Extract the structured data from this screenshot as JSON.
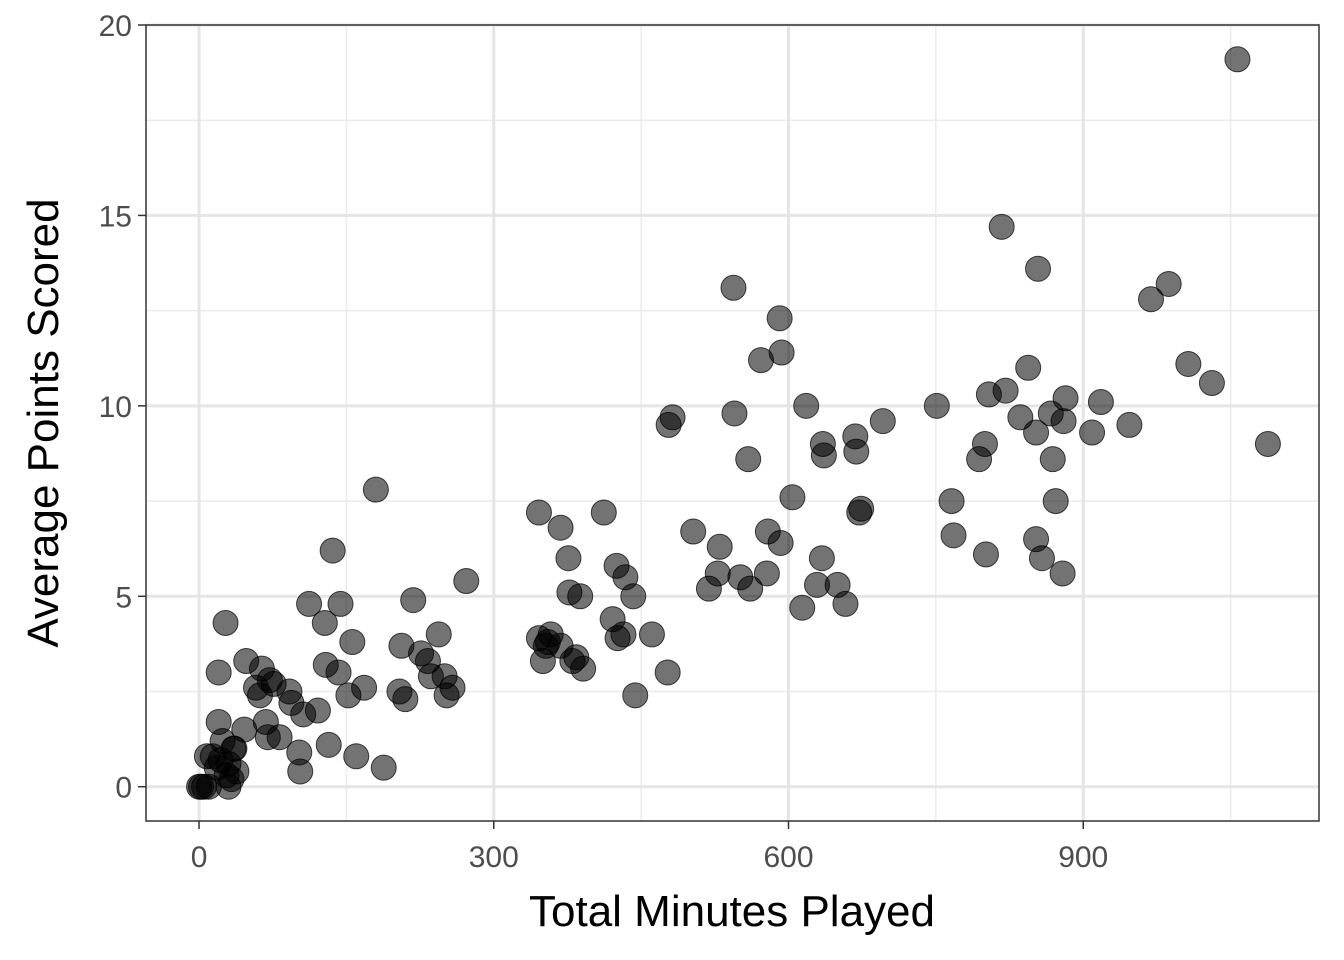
{
  "chart_data": {
    "type": "scatter",
    "title": "",
    "xlabel": "Total Minutes Played",
    "ylabel": "Average Points Scored",
    "xlim": [
      -54,
      1140
    ],
    "ylim": [
      -0.9,
      20
    ],
    "x_ticks": [
      0,
      300,
      600,
      900
    ],
    "x_tick_labels": [
      "0",
      "300",
      "600",
      "900"
    ],
    "y_ticks": [
      0,
      5,
      10,
      15,
      20
    ],
    "y_tick_labels": [
      "0",
      "5",
      "10",
      "15",
      "20"
    ],
    "x_minor": [
      150,
      450,
      750,
      1050
    ],
    "y_minor": [
      2.5,
      7.5,
      12.5,
      17.5
    ],
    "grid": true,
    "point_color": "#000000",
    "point_alpha": 0.55,
    "points": [
      [
        0,
        0
      ],
      [
        2,
        0
      ],
      [
        5,
        0
      ],
      [
        8,
        0.8
      ],
      [
        10,
        0
      ],
      [
        14,
        0.8
      ],
      [
        18,
        0.5
      ],
      [
        20,
        1.7
      ],
      [
        20,
        3.0
      ],
      [
        22,
        0.7
      ],
      [
        24,
        1.2
      ],
      [
        27,
        4.3
      ],
      [
        28,
        0.3
      ],
      [
        30,
        0.6
      ],
      [
        30,
        0.0
      ],
      [
        33,
        0.2
      ],
      [
        35,
        1.0
      ],
      [
        36,
        1.0
      ],
      [
        38,
        0.4
      ],
      [
        46,
        1.5
      ],
      [
        48,
        3.3
      ],
      [
        58,
        2.6
      ],
      [
        62,
        2.4
      ],
      [
        64,
        3.1
      ],
      [
        68,
        1.7
      ],
      [
        70,
        1.3
      ],
      [
        72,
        2.8
      ],
      [
        76,
        2.7
      ],
      [
        82,
        1.3
      ],
      [
        92,
        2.5
      ],
      [
        94,
        2.2
      ],
      [
        102,
        0.9
      ],
      [
        103,
        0.4
      ],
      [
        106,
        1.9
      ],
      [
        112,
        4.8
      ],
      [
        121,
        2.0
      ],
      [
        128,
        4.3
      ],
      [
        129,
        3.2
      ],
      [
        132,
        1.1
      ],
      [
        136,
        6.2
      ],
      [
        142,
        3.0
      ],
      [
        144,
        4.8
      ],
      [
        152,
        2.4
      ],
      [
        156,
        3.8
      ],
      [
        160,
        0.8
      ],
      [
        168,
        2.6
      ],
      [
        180,
        7.8
      ],
      [
        188,
        0.5
      ],
      [
        204,
        2.5
      ],
      [
        206,
        3.7
      ],
      [
        210,
        2.3
      ],
      [
        218,
        4.9
      ],
      [
        226,
        3.5
      ],
      [
        233,
        3.3
      ],
      [
        236,
        2.9
      ],
      [
        244,
        4.0
      ],
      [
        250,
        2.9
      ],
      [
        252,
        2.4
      ],
      [
        258,
        2.6
      ],
      [
        272,
        5.4
      ],
      [
        346,
        3.9
      ],
      [
        346,
        7.2
      ],
      [
        350,
        3.3
      ],
      [
        353,
        3.7
      ],
      [
        355,
        3.8
      ],
      [
        358,
        4.0
      ],
      [
        368,
        6.8
      ],
      [
        368,
        3.7
      ],
      [
        376,
        6.0
      ],
      [
        377,
        5.1
      ],
      [
        380,
        3.3
      ],
      [
        384,
        3.4
      ],
      [
        388,
        5.0
      ],
      [
        391,
        3.1
      ],
      [
        412,
        7.2
      ],
      [
        421,
        4.4
      ],
      [
        425,
        5.8
      ],
      [
        426,
        3.9
      ],
      [
        432,
        4.0
      ],
      [
        434,
        5.5
      ],
      [
        442,
        5.0
      ],
      [
        444,
        2.4
      ],
      [
        461,
        4.0
      ],
      [
        477,
        3.0
      ],
      [
        478,
        9.5
      ],
      [
        482,
        9.7
      ],
      [
        503,
        6.7
      ],
      [
        519,
        5.2
      ],
      [
        528,
        5.6
      ],
      [
        530,
        6.3
      ],
      [
        544,
        13.1
      ],
      [
        545,
        9.8
      ],
      [
        551,
        5.5
      ],
      [
        559,
        8.6
      ],
      [
        561,
        5.2
      ],
      [
        572,
        11.2
      ],
      [
        578,
        5.6
      ],
      [
        579,
        6.7
      ],
      [
        591,
        12.3
      ],
      [
        592,
        6.4
      ],
      [
        593,
        11.4
      ],
      [
        604,
        7.6
      ],
      [
        614,
        4.7
      ],
      [
        618,
        10.0
      ],
      [
        629,
        5.3
      ],
      [
        634,
        6.0
      ],
      [
        635,
        9.0
      ],
      [
        636,
        8.7
      ],
      [
        650,
        5.3
      ],
      [
        658,
        4.8
      ],
      [
        668,
        9.2
      ],
      [
        669,
        8.8
      ],
      [
        672,
        7.2
      ],
      [
        674,
        7.3
      ],
      [
        696,
        9.6
      ],
      [
        751,
        10.0
      ],
      [
        766,
        7.5
      ],
      [
        768,
        6.6
      ],
      [
        794,
        8.6
      ],
      [
        800,
        9.0
      ],
      [
        801,
        6.1
      ],
      [
        804,
        10.3
      ],
      [
        817,
        14.7
      ],
      [
        821,
        10.4
      ],
      [
        836,
        9.7
      ],
      [
        844,
        11.0
      ],
      [
        852,
        9.3
      ],
      [
        852,
        6.5
      ],
      [
        854,
        13.6
      ],
      [
        858,
        6.0
      ],
      [
        867,
        9.8
      ],
      [
        869,
        8.6
      ],
      [
        872,
        7.5
      ],
      [
        879,
        5.6
      ],
      [
        880,
        9.6
      ],
      [
        882,
        10.2
      ],
      [
        909,
        9.3
      ],
      [
        918,
        10.1
      ],
      [
        947,
        9.5
      ],
      [
        969,
        12.8
      ],
      [
        987,
        13.2
      ],
      [
        1007,
        11.1
      ],
      [
        1031,
        10.6
      ],
      [
        1057,
        19.1
      ],
      [
        1088,
        9.0
      ]
    ]
  }
}
